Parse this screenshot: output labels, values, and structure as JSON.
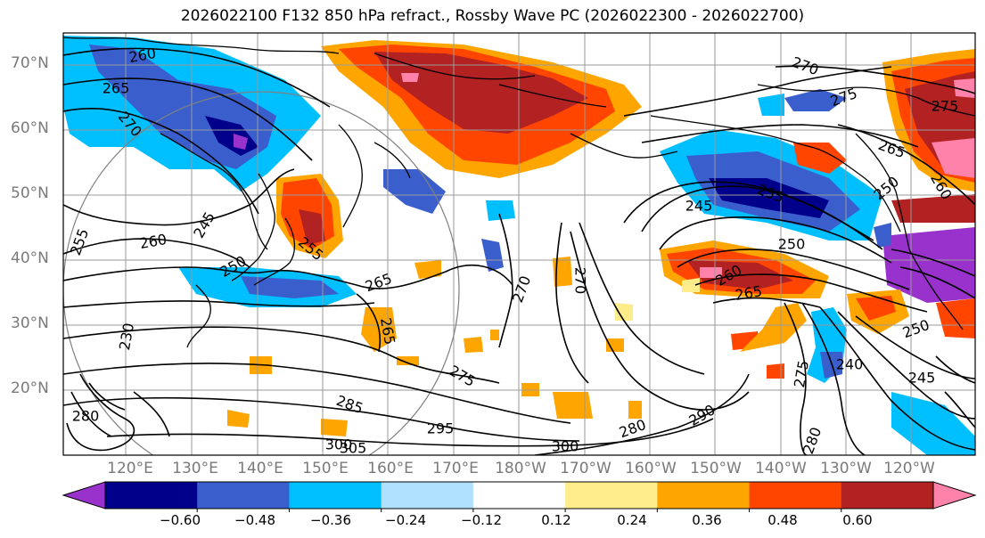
{
  "title": "2026022100 F132 850 hPa refract., Rossby Wave PC (2026022300 - 2026022700)",
  "latitude_labels": [
    "70°N",
    "60°N",
    "50°N",
    "40°N",
    "30°N",
    "20°N"
  ],
  "longitude_labels": [
    "120°E",
    "130°E",
    "140°E",
    "150°E",
    "160°E",
    "170°E",
    "180°W",
    "170°W",
    "160°W",
    "150°W",
    "140°W",
    "130°W",
    "120°W"
  ],
  "colorbar": {
    "ticks": [
      "−0.60",
      "−0.48",
      "−0.36",
      "−0.24",
      "−0.12",
      "0.12",
      "0.24",
      "0.36",
      "0.48",
      "0.60"
    ],
    "colors": [
      "#9932cc",
      "#00008b",
      "#3a5fcd",
      "#00bfff",
      "#b0e2ff",
      "#ffffff",
      "#ffec8b",
      "#ffa500",
      "#ff4500",
      "#b22222",
      "#ff82ab"
    ]
  },
  "contour_labels": [
    "260",
    "265",
    "270",
    "255",
    "260",
    "245",
    "250",
    "265",
    "270",
    "270",
    "265",
    "275",
    "285",
    "295",
    "300",
    "305",
    "280",
    "290",
    "300",
    "280",
    "270",
    "275",
    "265",
    "255",
    "245",
    "250",
    "260",
    "240",
    "250",
    "245",
    "265",
    "260",
    "280",
    "255",
    "250",
    "230",
    "275",
    "275"
  ],
  "colors": {
    "coast": "#000000",
    "grid": "#9a9a9a",
    "contour": "#000000",
    "circle": "#808080"
  }
}
